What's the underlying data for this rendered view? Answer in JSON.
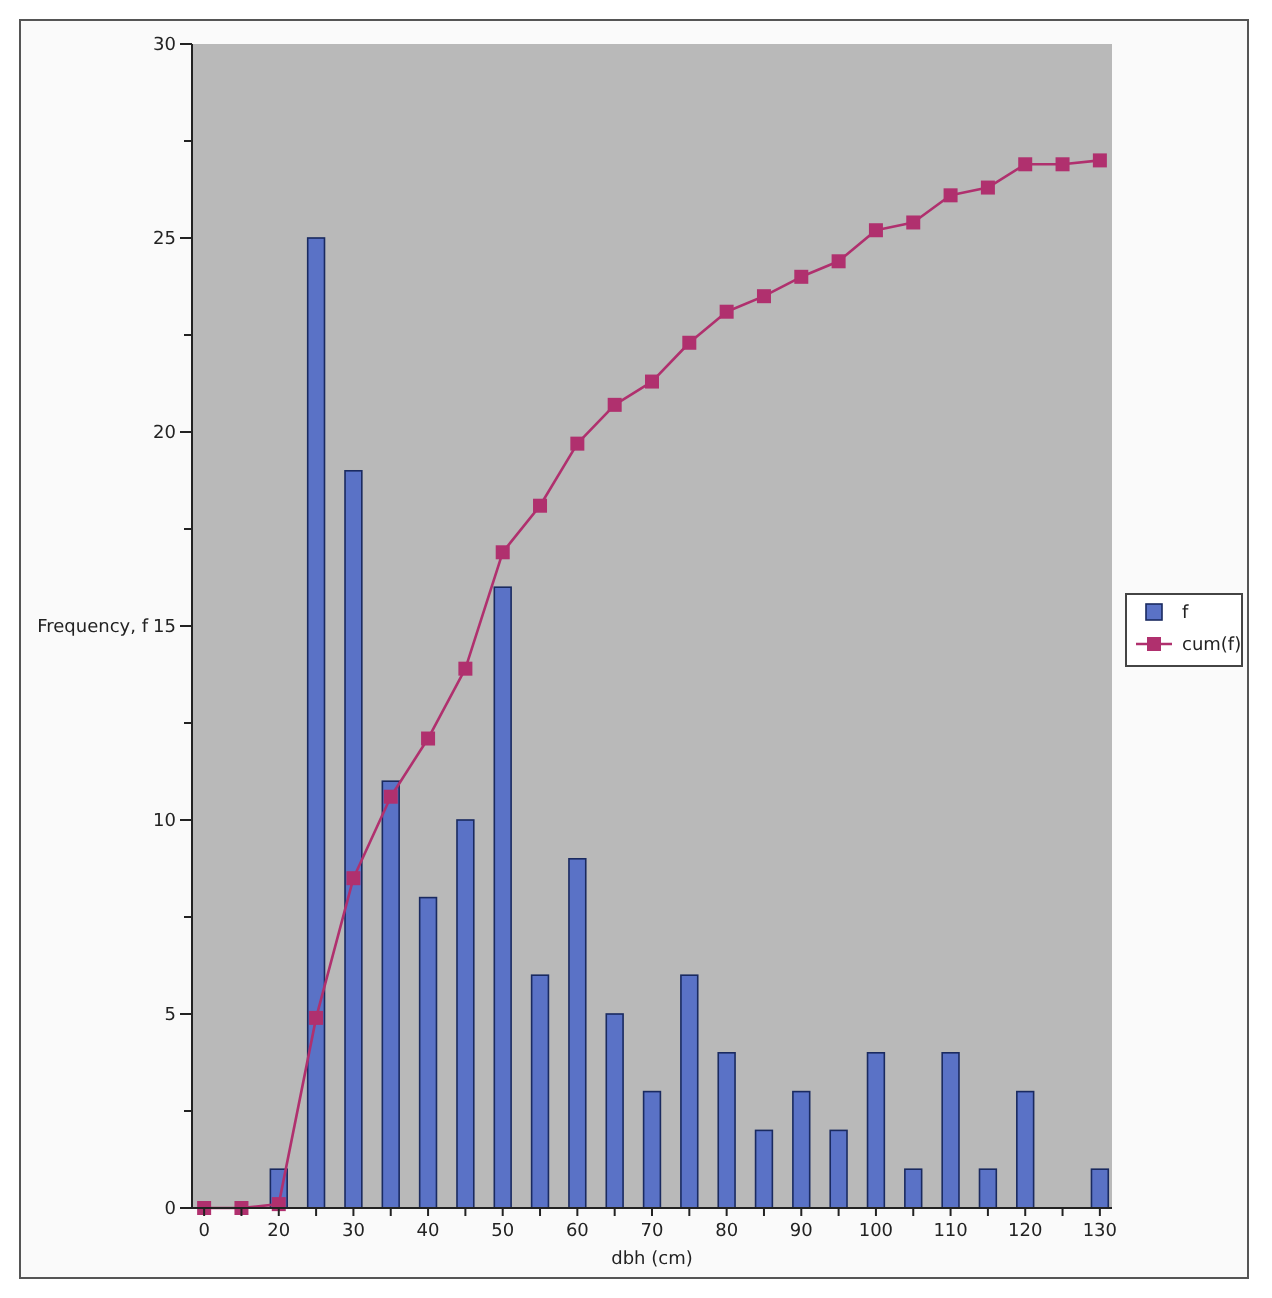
{
  "chart_data": {
    "type": "bar",
    "xlabel": "dbh (cm)",
    "ylabel": "Frequency, f",
    "categories": [
      "0",
      null,
      "20",
      null,
      "30",
      null,
      "40",
      null,
      "50",
      null,
      "60",
      null,
      "70",
      null,
      "80",
      null,
      "90",
      null,
      "100",
      null,
      "110",
      null,
      "120",
      null,
      "130"
    ],
    "series": [
      {
        "name": "f",
        "color": "#5a72c6",
        "values": [
          null,
          null,
          1,
          25,
          19,
          11,
          8,
          10,
          16,
          6,
          9,
          5,
          3,
          6,
          4,
          2,
          3,
          2,
          4,
          1,
          4,
          1,
          3,
          null,
          1
        ]
      },
      {
        "name": "cum(f)",
        "type": "line",
        "color": "#b0306e",
        "values": [
          0,
          0,
          0.1,
          4.9,
          8.5,
          10.6,
          12.1,
          13.9,
          16.9,
          18.1,
          19.7,
          20.7,
          21.3,
          22.3,
          23.1,
          23.5,
          24.0,
          24.4,
          25.2,
          25.4,
          26.1,
          26.3,
          26.9,
          26.9,
          27.0
        ]
      }
    ],
    "ylim": [
      0,
      30
    ],
    "yticks": [
      0,
      {
        "value": 2.5,
        "label": null
      },
      5,
      {
        "value": 7.5,
        "label": null
      },
      10,
      {
        "value": 12.5,
        "label": null
      },
      15,
      {
        "value": 17.5,
        "label": null
      },
      20,
      {
        "value": 22.5,
        "label": null
      },
      25,
      {
        "value": 27.5,
        "label": null
      },
      30
    ],
    "grid": false,
    "legend": "right",
    "marker": "square",
    "line_style": "solid"
  }
}
